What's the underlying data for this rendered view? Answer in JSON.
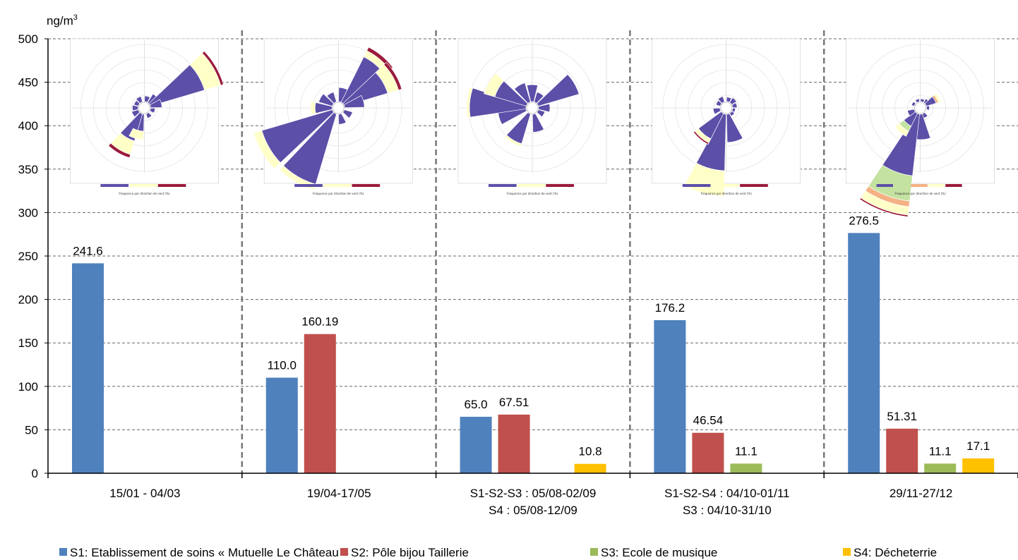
{
  "chart_data": {
    "type": "bar",
    "unit_label": "ng/m",
    "unit_sup": "3",
    "ylim": [
      0,
      500
    ],
    "yticks": [
      "0",
      "50",
      "100",
      "150",
      "200",
      "250",
      "300",
      "350",
      "400",
      "450",
      "500"
    ],
    "grid": true,
    "legend_position": "bottom",
    "categories": [
      [
        "15/01 - 04/03"
      ],
      [
        "19/04-17/05"
      ],
      [
        "S1-S2-S3 : 05/08-02/09",
        "S4 : 05/08-12/09"
      ],
      [
        "S1-S2-S4 : 04/10-01/11",
        "S3 : 04/10-31/10"
      ],
      [
        "29/11-27/12"
      ]
    ],
    "series": [
      {
        "name": "S1: Etablissement de soins « Mutuelle Le Château »",
        "color": "#4F81BD",
        "values": [
          241.6,
          110.0,
          65.0,
          176.2,
          276.5
        ],
        "labels": [
          "241.6",
          "110.0",
          "65.0",
          "176.2",
          "276.5"
        ]
      },
      {
        "name": "S2: Pôle bijou Taillerie",
        "color": "#C0504D",
        "values": [
          null,
          160.19,
          67.51,
          46.54,
          51.31
        ],
        "labels": [
          "",
          "160.19",
          "67.51",
          "46.54",
          "51.31"
        ]
      },
      {
        "name": "S3: Ecole de musique",
        "color": "#9BBB59",
        "values": [
          null,
          null,
          null,
          11.1,
          11.1
        ],
        "labels": [
          "",
          "",
          "",
          "11.1",
          "11.1"
        ]
      },
      {
        "name": "S4: Décheterrie",
        "color": "#FFC000",
        "values": [
          null,
          null,
          10.8,
          null,
          17.1
        ],
        "labels": [
          "",
          "",
          "10.8",
          "",
          "17.1"
        ]
      }
    ],
    "wind_roses": [
      {
        "petals": [
          [
            15,
            10
          ],
          [
            45,
            18
          ],
          [
            60,
            100
          ],
          [
            75,
            20
          ],
          [
            105,
            8
          ],
          [
            150,
            8
          ],
          [
            195,
            30
          ],
          [
            210,
            50
          ],
          [
            240,
            12
          ],
          [
            270,
            10
          ],
          [
            300,
            8
          ],
          [
            330,
            10
          ]
        ],
        "pale": [
          [
            60,
            30
          ],
          [
            210,
            25
          ],
          [
            195,
            15
          ]
        ],
        "dark": [
          [
            60,
            5
          ],
          [
            210,
            6
          ]
        ]
      },
      {
        "petals": [
          [
            15,
            25
          ],
          [
            40,
            90
          ],
          [
            60,
            80
          ],
          [
            75,
            35
          ],
          [
            120,
            15
          ],
          [
            165,
            18
          ],
          [
            210,
            130
          ],
          [
            240,
            130
          ],
          [
            270,
            30
          ],
          [
            300,
            25
          ],
          [
            330,
            18
          ]
        ],
        "pale": [
          [
            40,
            12
          ],
          [
            60,
            20
          ],
          [
            240,
            15
          ],
          [
            210,
            10
          ],
          [
            270,
            8
          ]
        ],
        "dark": [
          [
            40,
            7
          ],
          [
            60,
            6
          ]
        ]
      },
      {
        "petals": [
          [
            0,
            30
          ],
          [
            30,
            18
          ],
          [
            60,
            75
          ],
          [
            90,
            20
          ],
          [
            120,
            12
          ],
          [
            165,
            32
          ],
          [
            210,
            55
          ],
          [
            255,
            50
          ],
          [
            275,
            100
          ],
          [
            300,
            58
          ],
          [
            330,
            35
          ]
        ],
        "pale": [
          [
            300,
            20
          ],
          [
            275,
            5
          ],
          [
            210,
            5
          ]
        ],
        "dark": []
      },
      {
        "petals": [
          [
            15,
            8
          ],
          [
            45,
            10
          ],
          [
            75,
            8
          ],
          [
            105,
            5
          ],
          [
            135,
            6
          ],
          [
            165,
            50
          ],
          [
            195,
            100
          ],
          [
            220,
            50
          ],
          [
            255,
            12
          ],
          [
            300,
            8
          ],
          [
            330,
            10
          ]
        ],
        "pale": [
          [
            195,
            45
          ],
          [
            220,
            8
          ]
        ],
        "dark": [
          [
            220,
            3
          ]
        ]
      },
      {
        "petals": [
          [
            15,
            5
          ],
          [
            45,
            8
          ],
          [
            60,
            18
          ],
          [
            90,
            5
          ],
          [
            150,
            8
          ],
          [
            175,
            45
          ],
          [
            200,
            110
          ],
          [
            220,
            25
          ],
          [
            245,
            12
          ],
          [
            300,
            5
          ],
          [
            340,
            5
          ]
        ],
        "pale": [
          [
            200,
            15
          ],
          [
            220,
            10
          ],
          [
            60,
            5
          ]
        ],
        "green": [
          [
            200,
            45
          ],
          [
            220,
            10
          ]
        ],
        "orange": [
          [
            200,
            10
          ],
          [
            60,
            4
          ]
        ],
        "dark": [
          [
            200,
            3
          ]
        ]
      }
    ],
    "rose_caption": "Frequence par direction de vent (%)"
  }
}
